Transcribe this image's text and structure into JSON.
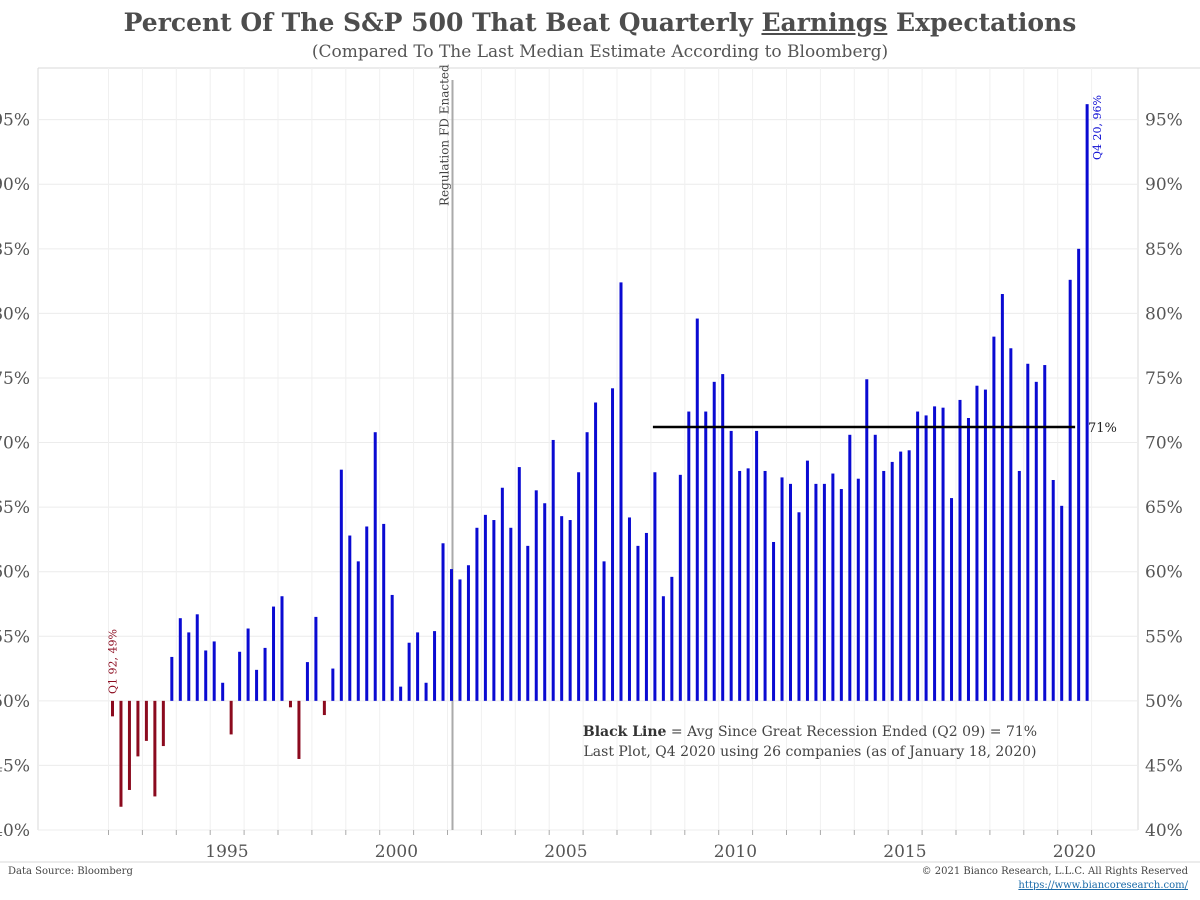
{
  "chart_data": {
    "type": "bar",
    "title_part1": "Percent Of The S&P 500 That Beat Quarterly ",
    "title_underlined": "Earnings",
    "title_part2": " Expectations",
    "subtitle": "(Compared To The Last Median Estimate According to Bloomberg)",
    "baseline": 50,
    "ylim": [
      40,
      99
    ],
    "yticks": [
      40,
      45,
      50,
      55,
      60,
      65,
      70,
      75,
      80,
      85,
      90,
      95
    ],
    "ytick_labels": [
      "40%",
      "45%",
      "50%",
      "55%",
      "60%",
      "65%",
      "70%",
      "75%",
      "80%",
      "85%",
      "90%",
      "95%"
    ],
    "xticks": [
      1995,
      2000,
      2005,
      2010,
      2015,
      2020
    ],
    "xtick_labels": [
      "1995",
      "2000",
      "2005",
      "2010",
      "2015",
      "2020"
    ],
    "colors": {
      "above": "#0a0ad2",
      "below": "#8b0a1e",
      "avg_line": "#000000",
      "event_line": "#aaaaaa"
    },
    "quarters": [
      {
        "q": "Q1 92",
        "value": 48.8
      },
      {
        "q": "Q2 92",
        "value": 41.8
      },
      {
        "q": "Q3 92",
        "value": 43.1
      },
      {
        "q": "Q4 92",
        "value": 45.7
      },
      {
        "q": "Q1 93",
        "value": 46.9
      },
      {
        "q": "Q2 93",
        "value": 42.6
      },
      {
        "q": "Q3 93",
        "value": 46.5
      },
      {
        "q": "Q4 93",
        "value": 53.4
      },
      {
        "q": "Q1 94",
        "value": 56.4
      },
      {
        "q": "Q2 94",
        "value": 55.3
      },
      {
        "q": "Q3 94",
        "value": 56.7
      },
      {
        "q": "Q4 94",
        "value": 53.9
      },
      {
        "q": "Q1 95",
        "value": 54.6
      },
      {
        "q": "Q2 95",
        "value": 51.4
      },
      {
        "q": "Q3 95",
        "value": 47.4
      },
      {
        "q": "Q4 95",
        "value": 53.8
      },
      {
        "q": "Q1 96",
        "value": 55.6
      },
      {
        "q": "Q2 96",
        "value": 52.4
      },
      {
        "q": "Q3 96",
        "value": 54.1
      },
      {
        "q": "Q4 96",
        "value": 57.3
      },
      {
        "q": "Q1 97",
        "value": 58.1
      },
      {
        "q": "Q2 97",
        "value": 49.5
      },
      {
        "q": "Q3 97",
        "value": 45.5
      },
      {
        "q": "Q4 97",
        "value": 53.0
      },
      {
        "q": "Q1 98",
        "value": 56.5
      },
      {
        "q": "Q2 98",
        "value": 48.9
      },
      {
        "q": "Q3 98",
        "value": 52.5
      },
      {
        "q": "Q4 98",
        "value": 67.9
      },
      {
        "q": "Q1 99",
        "value": 62.8
      },
      {
        "q": "Q2 99",
        "value": 60.8
      },
      {
        "q": "Q3 99",
        "value": 63.5
      },
      {
        "q": "Q4 99",
        "value": 70.8
      },
      {
        "q": "Q1 00",
        "value": 63.7
      },
      {
        "q": "Q2 00",
        "value": 58.2
      },
      {
        "q": "Q3 00",
        "value": 51.1
      },
      {
        "q": "Q4 00",
        "value": 54.5
      },
      {
        "q": "Q1 01",
        "value": 55.3
      },
      {
        "q": "Q2 01",
        "value": 51.4
      },
      {
        "q": "Q3 01",
        "value": 55.4
      },
      {
        "q": "Q4 01",
        "value": 62.2
      },
      {
        "q": "Q1 02",
        "value": 60.2
      },
      {
        "q": "Q2 02",
        "value": 59.4
      },
      {
        "q": "Q3 02",
        "value": 60.5
      },
      {
        "q": "Q4 02",
        "value": 63.4
      },
      {
        "q": "Q1 03",
        "value": 64.4
      },
      {
        "q": "Q2 03",
        "value": 64.0
      },
      {
        "q": "Q3 03",
        "value": 66.5
      },
      {
        "q": "Q4 03",
        "value": 63.4
      },
      {
        "q": "Q1 04",
        "value": 68.1
      },
      {
        "q": "Q2 04",
        "value": 62.0
      },
      {
        "q": "Q3 04",
        "value": 66.3
      },
      {
        "q": "Q4 04",
        "value": 65.3
      },
      {
        "q": "Q1 05",
        "value": 70.2
      },
      {
        "q": "Q2 05",
        "value": 64.3
      },
      {
        "q": "Q3 05",
        "value": 64.0
      },
      {
        "q": "Q4 05",
        "value": 67.7
      },
      {
        "q": "Q1 06",
        "value": 70.8
      },
      {
        "q": "Q2 06",
        "value": 73.1
      },
      {
        "q": "Q3 06",
        "value": 60.8
      },
      {
        "q": "Q4 06",
        "value": 74.2
      },
      {
        "q": "Q1 07",
        "value": 82.4
      },
      {
        "q": "Q2 07",
        "value": 64.2
      },
      {
        "q": "Q3 07",
        "value": 62.0
      },
      {
        "q": "Q4 07",
        "value": 63.0
      },
      {
        "q": "Q1 08",
        "value": 67.7
      },
      {
        "q": "Q2 08",
        "value": 58.1
      },
      {
        "q": "Q3 08",
        "value": 59.6
      },
      {
        "q": "Q4 08",
        "value": 67.5
      },
      {
        "q": "Q1 09",
        "value": 72.4
      },
      {
        "q": "Q2 09",
        "value": 79.6
      },
      {
        "q": "Q3 09",
        "value": 72.4
      },
      {
        "q": "Q4 09",
        "value": 74.7
      },
      {
        "q": "Q1 10",
        "value": 75.3
      },
      {
        "q": "Q2 10",
        "value": 70.9
      },
      {
        "q": "Q3 10",
        "value": 67.8
      },
      {
        "q": "Q4 10",
        "value": 68.0
      },
      {
        "q": "Q1 11",
        "value": 70.9
      },
      {
        "q": "Q2 11",
        "value": 67.8
      },
      {
        "q": "Q3 11",
        "value": 62.3
      },
      {
        "q": "Q4 11",
        "value": 67.3
      },
      {
        "q": "Q1 12",
        "value": 66.8
      },
      {
        "q": "Q2 12",
        "value": 64.6
      },
      {
        "q": "Q3 12",
        "value": 68.6
      },
      {
        "q": "Q4 12",
        "value": 66.8
      },
      {
        "q": "Q1 13",
        "value": 66.8
      },
      {
        "q": "Q2 13",
        "value": 67.6
      },
      {
        "q": "Q3 13",
        "value": 66.4
      },
      {
        "q": "Q4 13",
        "value": 70.6
      },
      {
        "q": "Q1 14",
        "value": 67.2
      },
      {
        "q": "Q2 14",
        "value": 74.9
      },
      {
        "q": "Q3 14",
        "value": 70.6
      },
      {
        "q": "Q4 14",
        "value": 67.8
      },
      {
        "q": "Q1 15",
        "value": 68.5
      },
      {
        "q": "Q2 15",
        "value": 69.3
      },
      {
        "q": "Q3 15",
        "value": 69.4
      },
      {
        "q": "Q4 15",
        "value": 72.4
      },
      {
        "q": "Q1 16",
        "value": 72.1
      },
      {
        "q": "Q2 16",
        "value": 72.8
      },
      {
        "q": "Q3 16",
        "value": 72.7
      },
      {
        "q": "Q4 16",
        "value": 65.7
      },
      {
        "q": "Q1 17",
        "value": 73.3
      },
      {
        "q": "Q2 17",
        "value": 71.9
      },
      {
        "q": "Q3 17",
        "value": 74.4
      },
      {
        "q": "Q4 17",
        "value": 74.1
      },
      {
        "q": "Q1 18",
        "value": 78.2
      },
      {
        "q": "Q2 18",
        "value": 81.5
      },
      {
        "q": "Q3 18",
        "value": 77.3
      },
      {
        "q": "Q4 18",
        "value": 67.8
      },
      {
        "q": "Q1 19",
        "value": 76.1
      },
      {
        "q": "Q2 19",
        "value": 74.7
      },
      {
        "q": "Q3 19",
        "value": 76.0
      },
      {
        "q": "Q4 19",
        "value": 67.1
      },
      {
        "q": "Q1 20",
        "value": 65.1
      },
      {
        "q": "Q2 20",
        "value": 82.6
      },
      {
        "q": "Q3 20",
        "value": 85.0
      },
      {
        "q": "Q4 20",
        "value": 96.2
      }
    ],
    "avg_line": {
      "value": 71.2,
      "from": "Q1 08",
      "to": "Q4 20",
      "label": "71%"
    },
    "event_line": {
      "at": "Q1 02",
      "label": "Regulation FD Enacted"
    },
    "first_label": "Q1 92, 49%",
    "last_label": "Q4 20, 96%",
    "note_bold": "Black Line",
    "note_line1": " = Avg Since Great Recession Ended (Q2 09) = 71%",
    "note_line2": "Last Plot, Q4 2020 using 26 companies (as of January 18, 2020)",
    "source": "Data Source: Bloomberg",
    "copyright": "© 2021 Bianco Research, L.L.C. All Rights Reserved",
    "url": "https://www.biancoresearch.com/"
  }
}
